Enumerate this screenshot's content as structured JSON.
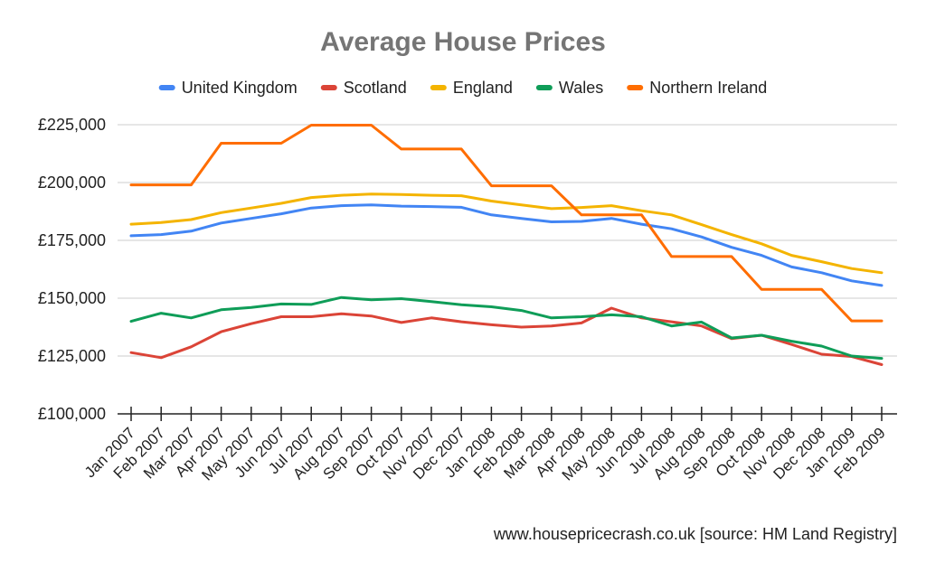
{
  "chart_data": {
    "type": "line",
    "title": "Average House Prices",
    "categories": [
      "Jan 2007",
      "Feb 2007",
      "Mar 2007",
      "Apr 2007",
      "May 2007",
      "Jun 2007",
      "Jul 2007",
      "Aug 2007",
      "Sep 2007",
      "Oct 2007",
      "Nov 2007",
      "Dec 2007",
      "Jan 2008",
      "Feb 2008",
      "Mar 2008",
      "Apr 2008",
      "May 2008",
      "Jun 2008",
      "Jul 2008",
      "Aug 2008",
      "Sep 2008",
      "Oct 2008",
      "Nov 2008",
      "Dec 2008",
      "Jan 2009",
      "Feb 2009"
    ],
    "ylim": [
      100000,
      225000
    ],
    "yticks": [
      100000,
      125000,
      150000,
      175000,
      200000,
      225000
    ],
    "ytick_labels": [
      "£100,000",
      "£125,000",
      "£150,000",
      "£175,000",
      "£200,000",
      "£225,000"
    ],
    "xlabel": "",
    "ylabel": "",
    "grid": true,
    "legend_position": "top",
    "source_note": "www.housepricecrash.co.uk [source: HM Land Registry]",
    "series": [
      {
        "name": "United Kingdom",
        "color": "#4285f4",
        "values": [
          177000,
          177500,
          179000,
          182500,
          184500,
          186500,
          189000,
          190000,
          190300,
          189800,
          189600,
          189300,
          186000,
          184500,
          183000,
          183200,
          184500,
          182000,
          180000,
          176500,
          172000,
          168500,
          163500,
          161000,
          157500,
          155500
        ]
      },
      {
        "name": "Scotland",
        "color": "#db4437",
        "values": [
          126500,
          124300,
          129000,
          135500,
          139000,
          142000,
          142000,
          143300,
          142300,
          139500,
          141500,
          139800,
          138500,
          137500,
          138000,
          139300,
          145700,
          141500,
          139800,
          138000,
          132500,
          134000,
          130000,
          125800,
          124800,
          121300
        ]
      },
      {
        "name": "England",
        "color": "#f4b400",
        "values": [
          182000,
          182700,
          184000,
          187000,
          189000,
          191000,
          193500,
          194500,
          195000,
          194800,
          194500,
          194300,
          192000,
          190300,
          188700,
          189200,
          190000,
          187800,
          186000,
          181800,
          177500,
          173500,
          168500,
          165800,
          162800,
          161000
        ]
      },
      {
        "name": "Wales",
        "color": "#0f9d58",
        "values": [
          140000,
          143500,
          141500,
          145000,
          146000,
          147500,
          147300,
          150300,
          149300,
          149800,
          148500,
          147200,
          146300,
          144700,
          141500,
          142000,
          142800,
          142000,
          138000,
          139700,
          132800,
          134000,
          131400,
          129300,
          125000,
          124000
        ]
      },
      {
        "name": "Northern Ireland",
        "color": "#ff6d00",
        "values": [
          199000,
          199000,
          199000,
          217000,
          217000,
          217000,
          224800,
          224800,
          224800,
          214500,
          214500,
          214500,
          198600,
          198600,
          198600,
          186000,
          186000,
          186000,
          168000,
          168000,
          168000,
          153800,
          153800,
          153800,
          140200,
          140200
        ]
      }
    ]
  }
}
